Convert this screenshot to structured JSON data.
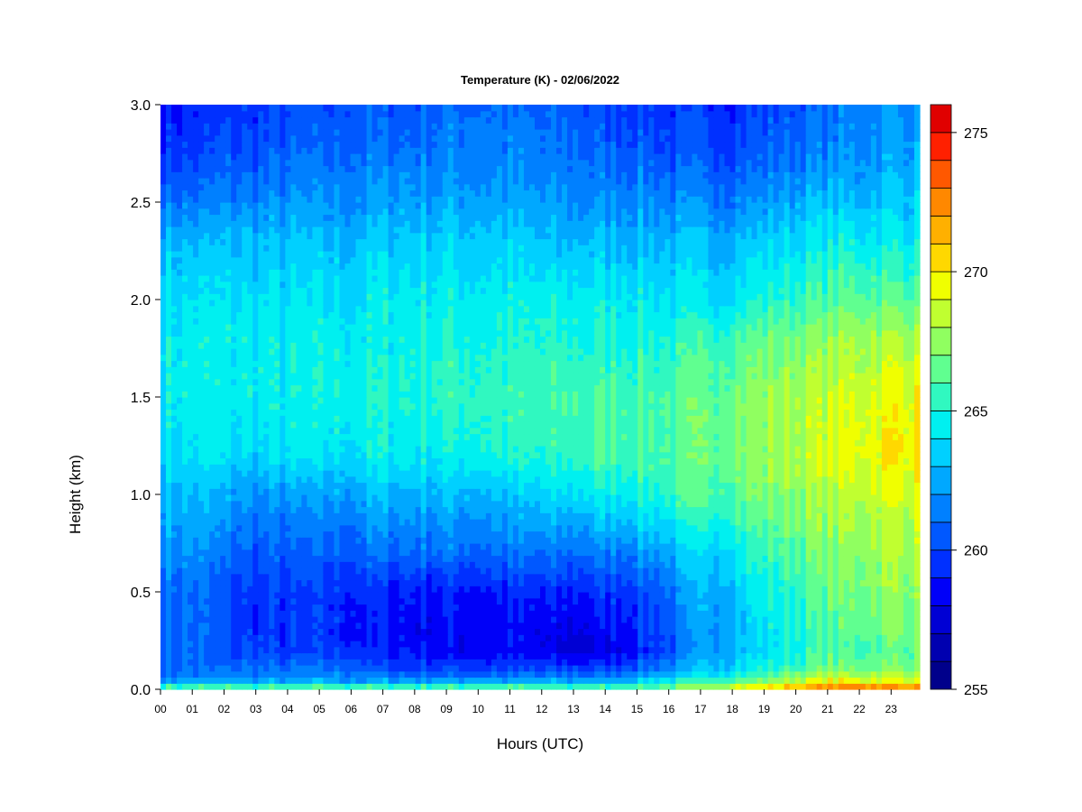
{
  "chart_data": {
    "type": "heatmap",
    "title": "Temperature (K) - 02/06/2022",
    "xlabel": "Hours (UTC)",
    "ylabel": "Height (km)",
    "x_ticks": [
      "00",
      "01",
      "02",
      "03",
      "04",
      "05",
      "06",
      "07",
      "08",
      "09",
      "10",
      "11",
      "12",
      "13",
      "14",
      "15",
      "16",
      "17",
      "18",
      "19",
      "20",
      "21",
      "22",
      "23"
    ],
    "x_range": [
      0,
      23.9
    ],
    "y_ticks": [
      "0.0",
      "0.5",
      "1.0",
      "1.5",
      "2.0",
      "2.5",
      "3.0"
    ],
    "y_range": [
      0,
      3.0
    ],
    "colorbar": {
      "ticks": [
        "255",
        "260",
        "265",
        "270",
        "275"
      ],
      "range": [
        255,
        276
      ],
      "step": 1,
      "colors": [
        "#00008b",
        "#0000b0",
        "#0000d4",
        "#0000f8",
        "#0030ff",
        "#0058ff",
        "#0080ff",
        "#00a8ff",
        "#00d0ff",
        "#00f0f0",
        "#30f8c0",
        "#60ff90",
        "#90ff60",
        "#c0ff30",
        "#f0ff00",
        "#ffd800",
        "#ffb000",
        "#ff8800",
        "#ff5800",
        "#ff2000",
        "#e00000",
        "#b00000",
        "#800000"
      ]
    },
    "hours": [
      0,
      1,
      2,
      3,
      4,
      5,
      6,
      7,
      8,
      9,
      10,
      11,
      12,
      13,
      14,
      15,
      16,
      17,
      18,
      19,
      20,
      21,
      22,
      23,
      23.9
    ],
    "heights_km": [
      0.0,
      0.05,
      0.1,
      0.2,
      0.3,
      0.5,
      0.7,
      1.0,
      1.2,
      1.5,
      1.8,
      2.0,
      2.3,
      2.6,
      2.8,
      3.0
    ],
    "values": [
      [
        267,
        267,
        267,
        267,
        267,
        267,
        267,
        267,
        267,
        267,
        267,
        267,
        267,
        267,
        267,
        267,
        267,
        268,
        270,
        271,
        272,
        273,
        274,
        273,
        273
      ],
      [
        262,
        262,
        262,
        262,
        262,
        262,
        262,
        262,
        262,
        262,
        262,
        262,
        262,
        262,
        262,
        263,
        264,
        265,
        266,
        267,
        268,
        269,
        269,
        269,
        269
      ],
      [
        261,
        261,
        261,
        261,
        261,
        261,
        261,
        260,
        260,
        260,
        260,
        260,
        260,
        260,
        260,
        261,
        262,
        263,
        264,
        265,
        266,
        267,
        267,
        267,
        267
      ],
      [
        261,
        261,
        260,
        260,
        259.5,
        259.5,
        259.5,
        259,
        259,
        258.5,
        258.5,
        258.5,
        258,
        257.5,
        258,
        259,
        260,
        262,
        263,
        264,
        265,
        266,
        266,
        266.5,
        266.5
      ],
      [
        261,
        261,
        260,
        259.5,
        259.5,
        259.5,
        259,
        259,
        258.5,
        258.5,
        258.5,
        258.5,
        258,
        258,
        258.5,
        259.5,
        260.5,
        262,
        263,
        264,
        265,
        266,
        266.5,
        267,
        267
      ],
      [
        261,
        261,
        260,
        259.5,
        259.5,
        259.5,
        259.5,
        259,
        259,
        259,
        259,
        259,
        259,
        259,
        259.5,
        260,
        261,
        262.5,
        263.5,
        264.5,
        265.5,
        266.5,
        267,
        267.5,
        267.5
      ],
      [
        262,
        262,
        261,
        260.5,
        260.5,
        260.5,
        260.5,
        261,
        261,
        261,
        261,
        261,
        261,
        261,
        261.5,
        262,
        262.5,
        263.5,
        264.5,
        265.5,
        266.5,
        267,
        267.5,
        268,
        268
      ],
      [
        263,
        263,
        262.5,
        262,
        262,
        262,
        262.5,
        263,
        263,
        263,
        263,
        263,
        263.5,
        264,
        264.5,
        265,
        265.5,
        266,
        266.5,
        267,
        267.5,
        268,
        268.5,
        269,
        269
      ],
      [
        264,
        264,
        264,
        263.5,
        264,
        264,
        264,
        264.5,
        264.5,
        264.5,
        265,
        265,
        265,
        265.5,
        266,
        266,
        266,
        266.5,
        267,
        267.5,
        268,
        269,
        269.5,
        270,
        270
      ],
      [
        264.5,
        264.5,
        264.5,
        264.5,
        264.5,
        264.5,
        265,
        265,
        265,
        265.5,
        265.5,
        265.5,
        265.5,
        266,
        266,
        266,
        266,
        266.5,
        267,
        267.5,
        268,
        268.5,
        269,
        269.5,
        269.5
      ],
      [
        264.5,
        264.5,
        264.5,
        264.5,
        264.5,
        264.5,
        264.5,
        264.5,
        265,
        265,
        265,
        265,
        265,
        265,
        265,
        265,
        265,
        265.5,
        266,
        266.5,
        267,
        267.5,
        268,
        268,
        268
      ],
      [
        264,
        264,
        264,
        264,
        264,
        264,
        264,
        264.5,
        264.5,
        264.5,
        264.5,
        264.5,
        264.5,
        264.5,
        264.5,
        264.5,
        264,
        264,
        264.5,
        265,
        265.5,
        266,
        266.5,
        266.5,
        266.5
      ],
      [
        263,
        263,
        263,
        263,
        263,
        263,
        263,
        263.5,
        263.5,
        263.5,
        263.5,
        263.5,
        263,
        263,
        263,
        263,
        263,
        263,
        263,
        263.5,
        264,
        264.5,
        264.5,
        264.5,
        264.5
      ],
      [
        260.5,
        260.5,
        261,
        261,
        261.5,
        261.5,
        261.5,
        262,
        262,
        262,
        262,
        262,
        261.5,
        261.5,
        261.5,
        261.5,
        261,
        261,
        261,
        261.5,
        262,
        262.5,
        262.5,
        263,
        263
      ],
      [
        259.5,
        259.5,
        260,
        260,
        260.5,
        260.5,
        261,
        261,
        261,
        261.5,
        261.5,
        261.5,
        261,
        261,
        260.5,
        260.5,
        260,
        260,
        260,
        260.5,
        261,
        261.5,
        262,
        262.5,
        262.5
      ],
      [
        259,
        259,
        259.5,
        259.5,
        260,
        260,
        260.5,
        260.5,
        260.5,
        261,
        261,
        261,
        260.5,
        260.5,
        260,
        260,
        259.5,
        259.5,
        259.5,
        260,
        260.5,
        261,
        261.5,
        262,
        262
      ]
    ]
  }
}
